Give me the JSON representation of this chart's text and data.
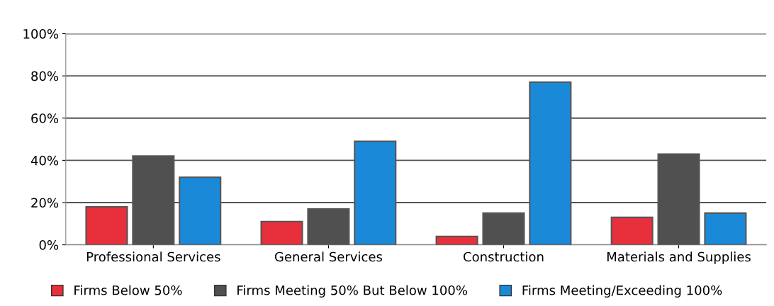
{
  "chart_data": {
    "type": "bar",
    "categories": [
      "Professional Services",
      "General Services",
      "Construction",
      "Materials and Supplies"
    ],
    "series": [
      {
        "name": "Firms Below 50%",
        "color": "#e8303c",
        "values": [
          18,
          11,
          4,
          13
        ]
      },
      {
        "name": "Firms Meeting 50% But Below 100%",
        "color": "#505050",
        "values": [
          42,
          17,
          15,
          43
        ]
      },
      {
        "name": "Firms Meeting/Exceeding 100%",
        "color": "#1a8ad8",
        "values": [
          32,
          49,
          77,
          15
        ]
      }
    ],
    "ylim": [
      0,
      100
    ],
    "yticks": [
      {
        "value": 0,
        "label": "0%"
      },
      {
        "value": 20,
        "label": "20%"
      },
      {
        "value": 40,
        "label": "40%"
      },
      {
        "value": 60,
        "label": "60%"
      },
      {
        "value": 80,
        "label": "80%"
      },
      {
        "value": 100,
        "label": "100%"
      }
    ],
    "grid": "y",
    "legend": "bottom"
  }
}
